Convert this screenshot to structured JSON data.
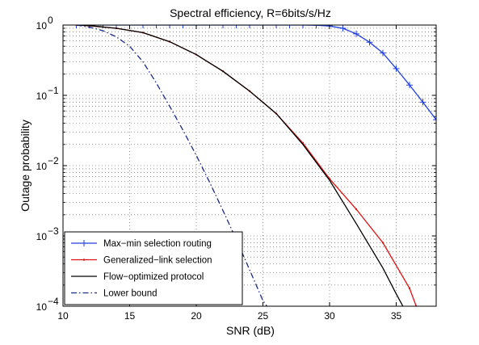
{
  "chart_data": {
    "type": "line",
    "title": "Spectral efficiency, R=6bits/s/Hz",
    "xlabel": "SNR (dB)",
    "ylabel": "Outage probability",
    "xlim": [
      10,
      38
    ],
    "ylim": [
      0.0001,
      1
    ],
    "yscale": "log",
    "grid": true,
    "legend_position": "bottom-left",
    "x_ticks": [
      "10",
      "15",
      "20",
      "25",
      "30",
      "35"
    ],
    "series": [
      {
        "name": "Max−min selection routing",
        "color": "#1f3fe0",
        "style": "solid",
        "marker": "plus",
        "x": [
          11,
          12,
          13,
          14,
          15,
          16,
          17,
          18,
          19,
          20,
          21,
          22,
          23,
          24,
          25,
          26,
          27,
          28,
          29,
          30,
          31,
          32,
          33,
          34,
          35,
          36,
          37,
          38
        ],
        "y": [
          1,
          1,
          1,
          1,
          1,
          1,
          1,
          1,
          1,
          1,
          1,
          1,
          1,
          1,
          1,
          1,
          1,
          1,
          0.995,
          0.97,
          0.9,
          0.75,
          0.57,
          0.4,
          0.24,
          0.14,
          0.08,
          0.045
        ]
      },
      {
        "name": "Generalized−link selection",
        "color": "#e01010",
        "style": "solid",
        "marker": "dot",
        "x": [
          11,
          12,
          14,
          16,
          18,
          20,
          22,
          24,
          26,
          28,
          30,
          32,
          34,
          36,
          36.5
        ],
        "y": [
          1,
          0.98,
          0.9,
          0.78,
          0.58,
          0.38,
          0.22,
          0.115,
          0.055,
          0.021,
          0.0065,
          0.0024,
          0.0008,
          0.00018,
          0.0001
        ]
      },
      {
        "name": "Flow−optimized protocol",
        "color": "#000000",
        "style": "solid",
        "marker": "none",
        "x": [
          11,
          12,
          14,
          16,
          18,
          20,
          22,
          24,
          26,
          28,
          30,
          32,
          34,
          35,
          35.5
        ],
        "y": [
          1,
          0.98,
          0.9,
          0.78,
          0.58,
          0.38,
          0.22,
          0.115,
          0.055,
          0.02,
          0.0062,
          0.0015,
          0.00035,
          0.00015,
          0.0001
        ]
      },
      {
        "name": "Lower bound",
        "color": "#1a2a8a",
        "style": "dashdot",
        "marker": "none",
        "x": [
          11,
          12,
          13,
          14,
          15,
          16,
          17,
          18,
          19,
          20,
          21,
          22,
          23,
          24,
          25,
          25.3
        ],
        "y": [
          1,
          0.93,
          0.83,
          0.68,
          0.5,
          0.3,
          0.15,
          0.07,
          0.032,
          0.014,
          0.0058,
          0.0023,
          0.00089,
          0.00033,
          0.00012,
          0.0001
        ]
      }
    ]
  }
}
